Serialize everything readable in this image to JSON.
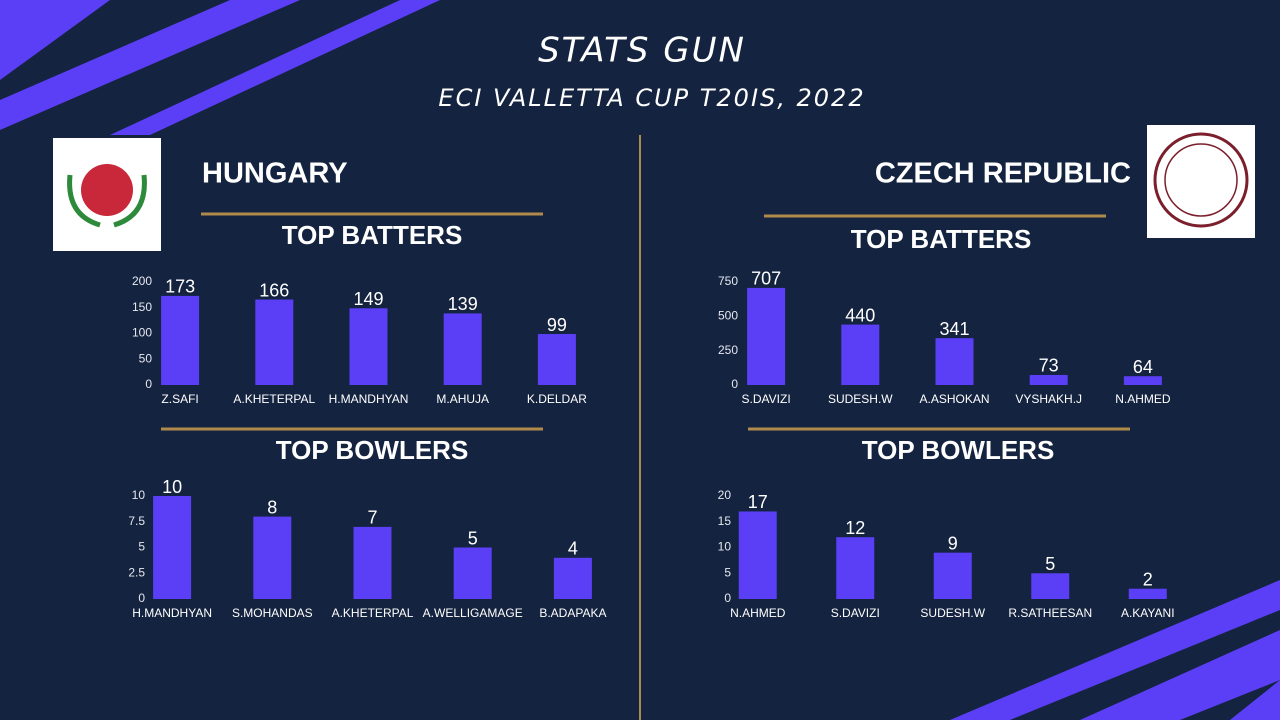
{
  "header": {
    "title": "STATS GUN",
    "subtitle": "ECI VALLETTA CUP T20IS, 2022"
  },
  "teams": [
    {
      "name": "HUNGARY"
    },
    {
      "name": "CZECH REPUBLIC"
    }
  ],
  "chart_data": [
    {
      "type": "bar",
      "title": "TOP BATTERS",
      "color": "#5b3ff6",
      "categories": [
        "Z.SAFI",
        "A.KHETERPAL",
        "H.MANDHYAN",
        "M.AHUJA",
        "K.DELDAR"
      ],
      "values": [
        173,
        166,
        149,
        139,
        99
      ],
      "ylim": [
        0,
        200
      ],
      "yticks": [
        0,
        50,
        100,
        150,
        200
      ]
    },
    {
      "type": "bar",
      "title": "TOP BATTERS",
      "color": "#5b3ff6",
      "categories": [
        "S.DAVIZI",
        "SUDESH.W",
        "A.ASHOKAN",
        "VYSHAKH.J",
        "N.AHMED"
      ],
      "values": [
        707,
        440,
        341,
        73,
        64
      ],
      "ylim": [
        0,
        750
      ],
      "yticks": [
        0,
        250,
        500,
        750
      ]
    },
    {
      "type": "bar",
      "title": "TOP BOWLERS",
      "color": "#5b3ff6",
      "categories": [
        "H.MANDHYAN",
        "S.MOHANDAS",
        "A.KHETERPAL",
        "A.WELLIGAMAGE",
        "B.ADAPAKA"
      ],
      "values": [
        10,
        8,
        7,
        5,
        4
      ],
      "ylim": [
        0,
        10
      ],
      "yticks": [
        0,
        2.5,
        5,
        7.5,
        10
      ]
    },
    {
      "type": "bar",
      "title": "TOP BOWLERS",
      "color": "#5b3ff6",
      "categories": [
        "N.AHMED",
        "S.DAVIZI",
        "SUDESH.W",
        "R.SATHEESAN",
        "A.KAYANI"
      ],
      "values": [
        17,
        12,
        9,
        5,
        2
      ],
      "ylim": [
        0,
        20
      ],
      "yticks": [
        0,
        5,
        10,
        15,
        20
      ]
    }
  ]
}
